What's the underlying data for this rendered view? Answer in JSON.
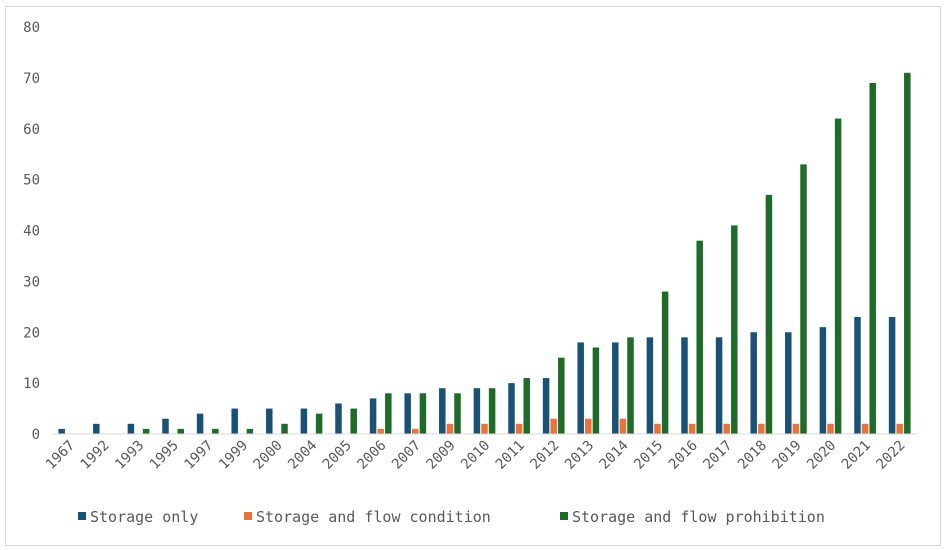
{
  "chart_data": {
    "type": "bar",
    "title": "",
    "xlabel": "",
    "ylabel": "",
    "ylim": [
      0,
      80
    ],
    "yticks": [
      0,
      10,
      20,
      30,
      40,
      50,
      60,
      70,
      80
    ],
    "grid": false,
    "legend_position": "bottom",
    "categories": [
      "1967",
      "1992",
      "1993",
      "1995",
      "1997",
      "1999",
      "2000",
      "2004",
      "2005",
      "2006",
      "2007",
      "2009",
      "2010",
      "2011",
      "2012",
      "2013",
      "2014",
      "2015",
      "2016",
      "2017",
      "2018",
      "2019",
      "2020",
      "2021",
      "2022"
    ],
    "series": [
      {
        "name": "Storage only",
        "color": "#1a5276",
        "values": [
          1,
          2,
          2,
          3,
          4,
          5,
          5,
          5,
          6,
          7,
          8,
          9,
          9,
          10,
          11,
          18,
          18,
          19,
          19,
          19,
          20,
          20,
          21,
          23,
          23
        ]
      },
      {
        "name": "Storage and flow condition",
        "color": "#e8743b",
        "values": [
          0,
          0,
          0,
          0,
          0,
          0,
          0,
          0,
          0,
          1,
          1,
          2,
          2,
          2,
          3,
          3,
          3,
          2,
          2,
          2,
          2,
          2,
          2,
          2,
          2
        ]
      },
      {
        "name": "Storage and flow prohibition",
        "color": "#1e6b2a",
        "values": [
          0,
          0,
          1,
          1,
          1,
          1,
          2,
          4,
          5,
          8,
          8,
          8,
          9,
          11,
          15,
          17,
          19,
          28,
          38,
          41,
          47,
          53,
          62,
          69,
          71
        ]
      }
    ]
  }
}
